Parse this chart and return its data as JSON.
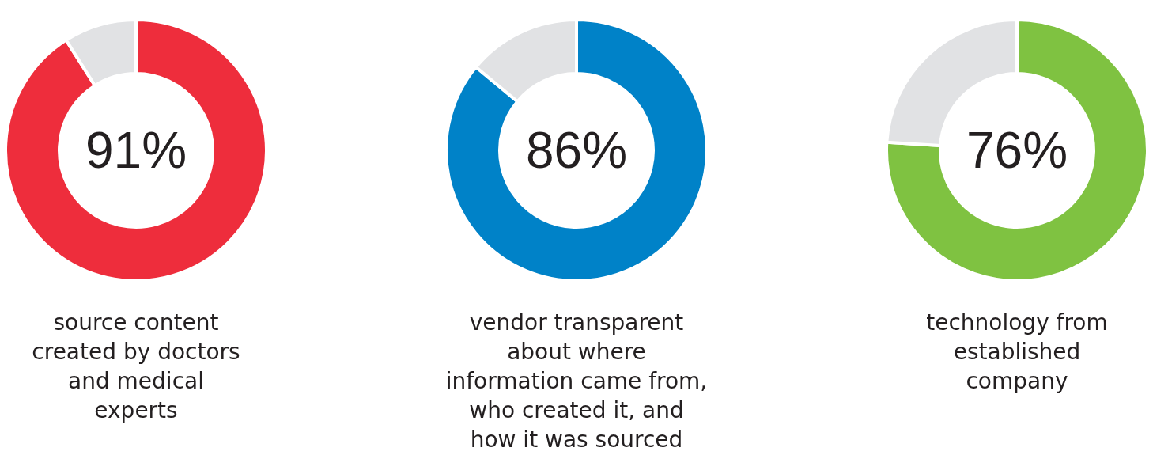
{
  "chart_data": [
    {
      "type": "donut",
      "title": "source content\ncreated by doctors\nand medical\nexperts",
      "categories": [
        null,
        null
      ],
      "values": [
        91,
        9
      ],
      "colors": [
        "#ee2d3c",
        "#e1e2e4"
      ],
      "value_labels": [
        "91%",
        null
      ]
    },
    {
      "type": "donut",
      "title": "vendor transparent\nabout where\ninformation came from,\nwho created it, and\nhow it was sourced",
      "categories": [
        null,
        null
      ],
      "values": [
        86,
        14
      ],
      "colors": [
        "#0082c8",
        "#e1e2e4"
      ],
      "value_labels": [
        "86%",
        null
      ]
    },
    {
      "type": "donut",
      "title": "technology from\nestablished\ncompany",
      "categories": [
        null,
        null
      ],
      "values": [
        76,
        24
      ],
      "colors": [
        "#7fc241",
        "#e1e2e4"
      ],
      "value_labels": [
        "76%",
        null
      ]
    }
  ]
}
